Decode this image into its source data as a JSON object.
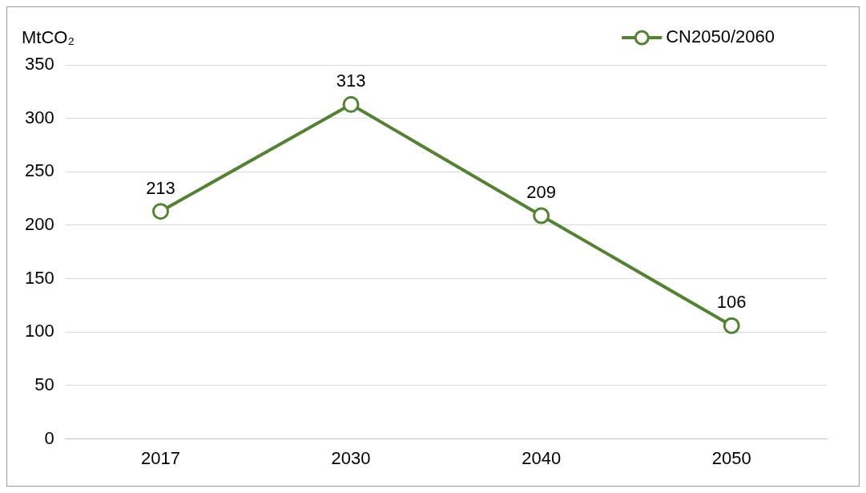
{
  "chart_data": {
    "type": "line",
    "ylabel": "MtCO₂",
    "categories": [
      "2017",
      "2030",
      "2040",
      "2050"
    ],
    "series": [
      {
        "name": "CN2050/2060",
        "color": "#548235",
        "values": [
          213,
          313,
          209,
          106
        ]
      }
    ],
    "ylim": [
      0,
      350
    ],
    "yticks": [
      0,
      50,
      100,
      150,
      200,
      250,
      300,
      350
    ],
    "grid": "y",
    "legend": "top right",
    "marker": "circle",
    "line_style": "solid",
    "data_labels": true
  }
}
